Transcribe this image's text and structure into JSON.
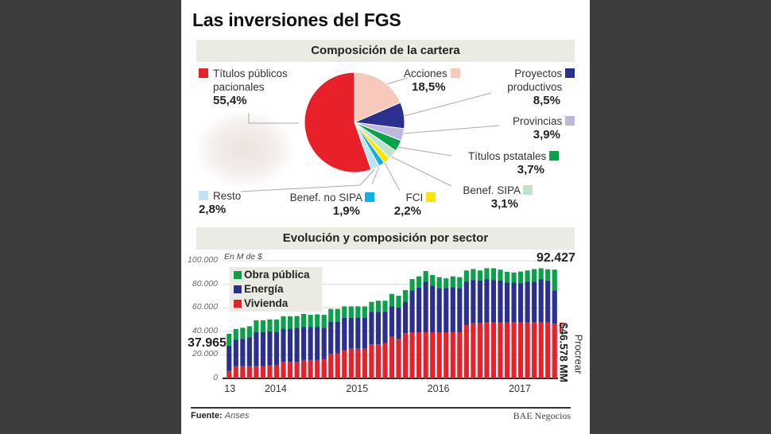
{
  "title": "Las inversiones del FGS",
  "pie_section": "Composición de la cartera",
  "bar_section": "Evolución y composición por sector",
  "footer": {
    "source_label": "Fuente:",
    "source": "Anses",
    "brand": "BAE Negocios"
  },
  "colors": {
    "titulos_publicos": "#e8202a",
    "acciones": "#f7c9bd",
    "proyectos": "#2b2f8f",
    "provincias": "#bcbadb",
    "estatales": "#0aa14b",
    "sipa": "#bfe3cc",
    "fci": "#ffe600",
    "no_sipa": "#12aee6",
    "resto": "#bfe4f5",
    "obra": "#0aa14b",
    "energia": "#2b2f8f",
    "vivienda": "#e8202a"
  },
  "chart_data": [
    {
      "type": "pie",
      "title": "Composición de la cartera",
      "slices": [
        {
          "name": "Acciones",
          "value": 18.5,
          "label": "18,5%",
          "color": "#f7c9bd"
        },
        {
          "name": "Proyectos productivos",
          "value": 8.5,
          "label": "8,5%",
          "color": "#2b2f8f"
        },
        {
          "name": "Provincias",
          "value": 3.9,
          "label": "3,9%",
          "color": "#bcbadb"
        },
        {
          "name": "Títulos pstatales",
          "value": 3.7,
          "label": "3,7%",
          "color": "#0aa14b"
        },
        {
          "name": "Benef. SIPA",
          "value": 3.1,
          "label": "3,1%",
          "color": "#bfe3cc"
        },
        {
          "name": "FCI",
          "value": 2.2,
          "label": "2,2%",
          "color": "#ffe600"
        },
        {
          "name": "Benef. no SIPA",
          "value": 1.9,
          "label": "1,9%",
          "color": "#12aee6"
        },
        {
          "name": "Resto",
          "value": 2.8,
          "label": "2,8%",
          "color": "#bfe4f5"
        },
        {
          "name": "Títulos públicos pacionales",
          "value": 55.4,
          "label": "55,4%",
          "color": "#e8202a"
        }
      ]
    },
    {
      "type": "bar",
      "stacked": true,
      "title": "Evolución y composición por sector",
      "unit_label": "En M de $",
      "ylim": [
        0,
        100000
      ],
      "yticks": [
        0,
        20000,
        40000,
        60000,
        80000,
        100000
      ],
      "ytick_labels": [
        "0",
        "20.000",
        "40.000",
        "60.000",
        "80.000",
        "100.000"
      ],
      "xtick_labels": [
        "13",
        "2014",
        "2015",
        "2016",
        "2017"
      ],
      "xtick_bar_index": [
        0,
        7,
        19,
        31,
        43
      ],
      "legend": [
        "Obra pública",
        "Energía",
        "Vivienda"
      ],
      "legend_placement": "top-left",
      "annotations": {
        "first": "37.965",
        "last": "92.427",
        "procrear": "Procrear",
        "procrear_value": "$46.578 MM"
      },
      "series": [
        {
          "name": "Vivienda",
          "color": "#e8202a",
          "values": [
            6200,
            10300,
            10300,
            10300,
            10300,
            10500,
            11000,
            11500,
            14000,
            14000,
            14000,
            15600,
            15600,
            15600,
            16300,
            20900,
            21300,
            24000,
            25200,
            25200,
            25200,
            29000,
            29000,
            29800,
            35500,
            33300,
            38300,
            39200,
            39200,
            39200,
            39200,
            39200,
            39200,
            39200,
            39200,
            45600,
            47000,
            47000,
            47500,
            47500,
            47500,
            47500,
            47500,
            47500,
            47500,
            47500,
            47500,
            47500,
            46578
          ]
        },
        {
          "name": "Energía",
          "color": "#2b2f8f",
          "values": [
            21600,
            22500,
            23200,
            24700,
            28900,
            28700,
            29000,
            27700,
            28400,
            28400,
            29000,
            28200,
            28000,
            28200,
            26700,
            27300,
            26900,
            27600,
            26400,
            26400,
            26400,
            27600,
            27600,
            26800,
            25700,
            27000,
            27100,
            35600,
            37800,
            42900,
            39500,
            37600,
            37600,
            38300,
            37600,
            36500,
            36700,
            36300,
            36900,
            36200,
            35800,
            33900,
            33900,
            33500,
            34600,
            34600,
            36900,
            35800,
            28200
          ]
        },
        {
          "name": "Obra pública",
          "color": "#0aa14b",
          "values": [
            10165,
            9200,
            9500,
            9300,
            10100,
            10100,
            10000,
            10800,
            10400,
            10400,
            10000,
            11000,
            10400,
            10600,
            11000,
            10800,
            10800,
            9600,
            9600,
            9600,
            9600,
            8400,
            9400,
            9400,
            10600,
            9900,
            9600,
            9600,
            9700,
            9200,
            9100,
            9200,
            8200,
            9200,
            9200,
            9600,
            9200,
            8400,
            9200,
            9900,
            9100,
            9200,
            8600,
            9800,
            9600,
            10800,
            9200,
            9400,
            17649
          ]
        }
      ]
    }
  ]
}
